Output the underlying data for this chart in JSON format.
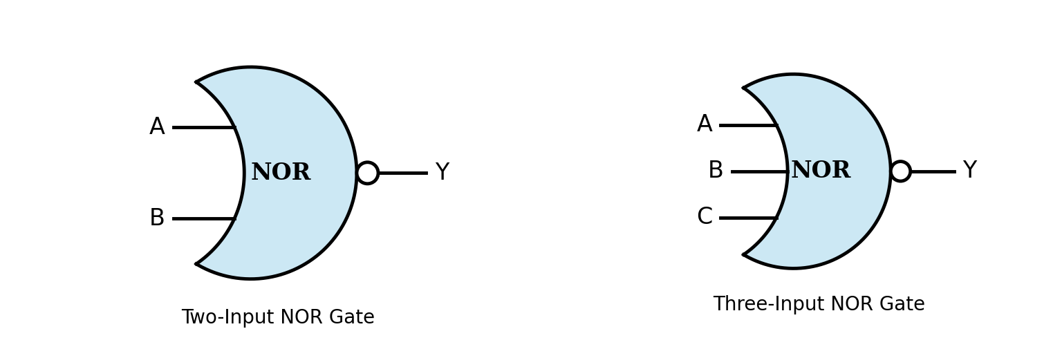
{
  "background_color": "#ffffff",
  "gate_fill_color": "#cce8f4",
  "gate_edge_color": "#000000",
  "line_color": "#000000",
  "text_color": "#000000",
  "line_width": 3.5,
  "two_input": {
    "label": "NOR",
    "label_fontsize": 24,
    "caption": "Two-Input NOR Gate",
    "caption_fontsize": 20,
    "inputs": [
      "A",
      "B"
    ],
    "output": "Y",
    "input_fontsize": 24,
    "output_fontsize": 24
  },
  "three_input": {
    "label": "NOR",
    "label_fontsize": 24,
    "caption": "Three-Input NOR Gate",
    "caption_fontsize": 20,
    "inputs": [
      "A",
      "B",
      "C"
    ],
    "output": "Y",
    "input_fontsize": 24,
    "output_fontsize": 24
  }
}
